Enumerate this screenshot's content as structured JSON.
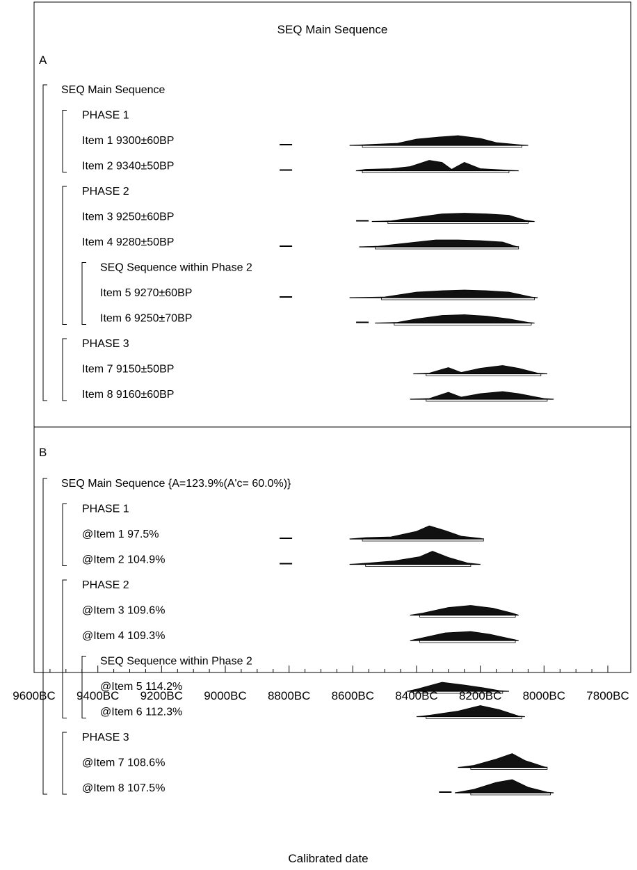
{
  "chart_data": {
    "type": "oxcal-multiplot",
    "title": "SEQ Main Sequence",
    "xlabel": "Calibrated date",
    "x_unit": "cal BC",
    "xlim": [
      9600,
      7800
    ],
    "x_ticks": [
      {
        "value": 9600,
        "label": "9600BC"
      },
      {
        "value": 9400,
        "label": "9400BC"
      },
      {
        "value": 9200,
        "label": "9200BC"
      },
      {
        "value": 9000,
        "label": "9000BC"
      },
      {
        "value": 8800,
        "label": "8800BC"
      },
      {
        "value": 8600,
        "label": "8600BC"
      },
      {
        "value": 8400,
        "label": "8400BC"
      },
      {
        "value": 8200,
        "label": "8200BC"
      },
      {
        "value": 8000,
        "label": "8000BC"
      },
      {
        "value": 7800,
        "label": "7800BC"
      }
    ],
    "panels": [
      {
        "letter": "A",
        "rows": [
          {
            "label": "SEQ Main Sequence",
            "kind": "header",
            "level": 0
          },
          {
            "label": "PHASE 1",
            "kind": "header",
            "level": 1
          },
          {
            "label": "Item 1  9300±60BP",
            "kind": "dist",
            "level": 1,
            "outlier": 8810,
            "range": [
              8610,
              8050
            ],
            "peaks": [
              [
                8560,
                1
              ],
              [
                8460,
                3
              ],
              [
                8400,
                9
              ],
              [
                8330,
                12
              ],
              [
                8270,
                14
              ],
              [
                8200,
                10
              ],
              [
                8150,
                4
              ],
              [
                8080,
                1
              ]
            ]
          },
          {
            "label": "Item 2  9340±50BP",
            "kind": "dist",
            "level": 1,
            "outlier": 8810,
            "range": [
              8590,
              8080
            ],
            "peaks": [
              [
                8560,
                2
              ],
              [
                8480,
                3
              ],
              [
                8420,
                6
              ],
              [
                8360,
                15
              ],
              [
                8320,
                12
              ],
              [
                8290,
                2
              ],
              [
                8250,
                12
              ],
              [
                8200,
                3
              ],
              [
                8120,
                1
              ]
            ]
          },
          {
            "label": "PHASE 2",
            "kind": "header",
            "level": 1
          },
          {
            "label": "Item 3  9250±60BP",
            "kind": "dist",
            "level": 1,
            "outlier": 8570,
            "range": [
              8540,
              8030
            ],
            "peaks": [
              [
                8480,
                1
              ],
              [
                8400,
                6
              ],
              [
                8320,
                11
              ],
              [
                8250,
                12
              ],
              [
                8180,
                11
              ],
              [
                8110,
                9
              ],
              [
                8060,
                2
              ]
            ]
          },
          {
            "label": "Item 4  9280±50BP",
            "kind": "dist",
            "level": 1,
            "outlier": 8810,
            "range": [
              8580,
              8080
            ],
            "peaks": [
              [
                8520,
                1
              ],
              [
                8400,
                7
              ],
              [
                8340,
                10
              ],
              [
                8270,
                10
              ],
              [
                8200,
                9
              ],
              [
                8130,
                7
              ],
              [
                8090,
                1
              ]
            ]
          },
          {
            "label": "SEQ Sequence within Phase 2",
            "kind": "header",
            "level": 2
          },
          {
            "label": "Item 5  9270±60BP",
            "kind": "dist",
            "level": 2,
            "outlier": 8810,
            "range": [
              8610,
              8020
            ],
            "peaks": [
              [
                8500,
                1
              ],
              [
                8400,
                8
              ],
              [
                8320,
                10
              ],
              [
                8250,
                11
              ],
              [
                8180,
                10
              ],
              [
                8110,
                8
              ],
              [
                8040,
                1
              ]
            ]
          },
          {
            "label": "Item 6  9250±70BP",
            "kind": "dist",
            "level": 2,
            "outlier": 8570,
            "range": [
              8530,
              8030
            ],
            "peaks": [
              [
                8460,
                1
              ],
              [
                8400,
                6
              ],
              [
                8320,
                11
              ],
              [
                8250,
                12
              ],
              [
                8180,
                10
              ],
              [
                8110,
                6
              ],
              [
                8050,
                1
              ]
            ]
          },
          {
            "label": "PHASE 3",
            "kind": "header",
            "level": 1
          },
          {
            "label": "Item 7  9150±50BP",
            "kind": "dist",
            "level": 1,
            "outlier": null,
            "range": [
              8410,
              7990
            ],
            "peaks": [
              [
                8360,
                1
              ],
              [
                8300,
                9
              ],
              [
                8260,
                2
              ],
              [
                8200,
                8
              ],
              [
                8130,
                12
              ],
              [
                8080,
                8
              ],
              [
                8020,
                1
              ]
            ]
          },
          {
            "label": "Item 8  9160±60BP",
            "kind": "dist",
            "level": 1,
            "outlier": null,
            "range": [
              8420,
              7970
            ],
            "peaks": [
              [
                8360,
                1
              ],
              [
                8300,
                10
              ],
              [
                8260,
                3
              ],
              [
                8200,
                8
              ],
              [
                8130,
                11
              ],
              [
                8080,
                8
              ],
              [
                8000,
                1
              ]
            ]
          }
        ]
      },
      {
        "letter": "B",
        "rows": [
          {
            "label": "SEQ Main Sequence {A=123.9%(A'c= 60.0%)}",
            "kind": "header",
            "level": 0
          },
          {
            "label": "PHASE 1",
            "kind": "header",
            "level": 1
          },
          {
            "label": "@Item 1   97.5%",
            "kind": "dist",
            "level": 1,
            "outlier": 8810,
            "range": [
              8610,
              8190
            ],
            "peaks": [
              [
                8560,
                2
              ],
              [
                8480,
                3
              ],
              [
                8400,
                11
              ],
              [
                8360,
                19
              ],
              [
                8310,
                12
              ],
              [
                8260,
                4
              ],
              [
                8200,
                1
              ]
            ]
          },
          {
            "label": "@Item 2  104.9%",
            "kind": "dist",
            "level": 1,
            "outlier": 8810,
            "range": [
              8610,
              8200
            ],
            "peaks": [
              [
                8550,
                2
              ],
              [
                8470,
                5
              ],
              [
                8390,
                11
              ],
              [
                8350,
                19
              ],
              [
                8300,
                10
              ],
              [
                8240,
                2
              ]
            ]
          },
          {
            "label": "PHASE 2",
            "kind": "header",
            "level": 1
          },
          {
            "label": "@Item 3  109.6%",
            "kind": "dist",
            "level": 1,
            "outlier": null,
            "range": [
              8420,
              8080
            ],
            "peaks": [
              [
                8380,
                3
              ],
              [
                8300,
                11
              ],
              [
                8230,
                14
              ],
              [
                8160,
                10
              ],
              [
                8100,
                3
              ]
            ]
          },
          {
            "label": "@Item 4  109.3%",
            "kind": "dist",
            "level": 1,
            "outlier": null,
            "range": [
              8420,
              8080
            ],
            "peaks": [
              [
                8380,
                4
              ],
              [
                8310,
                11
              ],
              [
                8230,
                13
              ],
              [
                8170,
                9
              ],
              [
                8100,
                2
              ]
            ]
          },
          {
            "label": "SEQ Sequence within Phase 2",
            "kind": "header",
            "level": 2
          },
          {
            "label": "@Item 5  114.2%",
            "kind": "dist",
            "level": 2,
            "outlier": null,
            "range": [
              8430,
              8110
            ],
            "peaks": [
              [
                8400,
                3
              ],
              [
                8320,
                13
              ],
              [
                8250,
                9
              ],
              [
                8190,
                5
              ],
              [
                8140,
                1
              ]
            ]
          },
          {
            "label": "@Item 6  112.3%",
            "kind": "dist",
            "level": 2,
            "outlier": null,
            "range": [
              8400,
              8060
            ],
            "peaks": [
              [
                8360,
                2
              ],
              [
                8270,
                8
              ],
              [
                8200,
                16
              ],
              [
                8140,
                10
              ],
              [
                8080,
                1
              ]
            ]
          },
          {
            "label": "PHASE 3",
            "kind": "header",
            "level": 1
          },
          {
            "label": "@Item 7  108.6%",
            "kind": "dist",
            "level": 1,
            "outlier": null,
            "range": [
              8270,
              7990
            ],
            "peaks": [
              [
                8220,
                3
              ],
              [
                8150,
                12
              ],
              [
                8100,
                20
              ],
              [
                8060,
                10
              ],
              [
                8000,
                1
              ]
            ]
          },
          {
            "label": "@Item 8  107.5%",
            "kind": "dist",
            "level": 1,
            "outlier": 8310,
            "range": [
              8280,
              7970
            ],
            "peaks": [
              [
                8220,
                5
              ],
              [
                8150,
                15
              ],
              [
                8100,
                19
              ],
              [
                8050,
                8
              ],
              [
                7990,
                1
              ]
            ]
          }
        ]
      }
    ]
  }
}
